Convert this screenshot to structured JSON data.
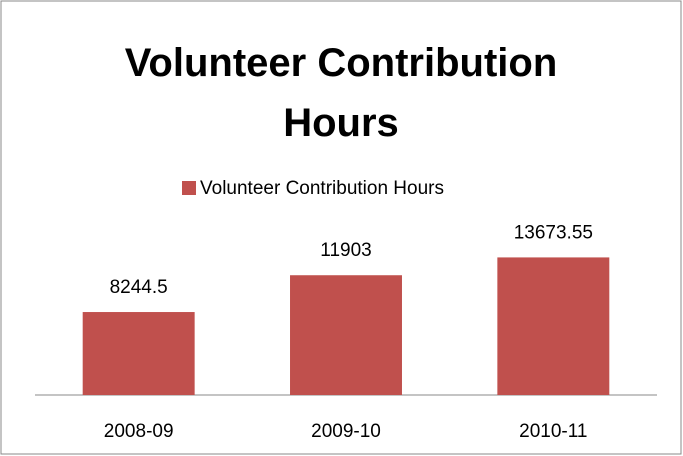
{
  "chart_data": {
    "type": "bar",
    "title": "Volunteer Contribution Hours",
    "categories": [
      "2008-09",
      "2009-10",
      "2010-11"
    ],
    "series": [
      {
        "name": "Volunteer Contribution Hours",
        "color": "#c0504d",
        "values": [
          8244.5,
          11903,
          13673.55
        ]
      }
    ],
    "ylim": [
      0,
      16000
    ],
    "legend": "top"
  }
}
